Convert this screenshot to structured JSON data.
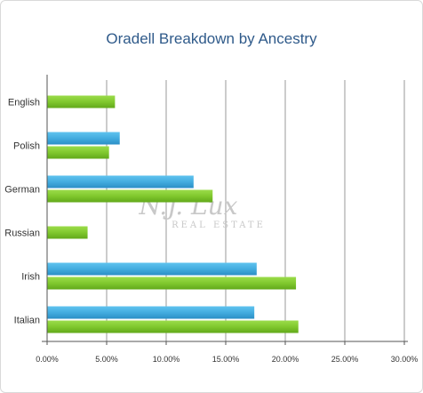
{
  "chart_data": {
    "type": "bar",
    "orientation": "horizontal",
    "title": "Oradell Breakdown by Ancestry",
    "categories": [
      "English",
      "Polish",
      "German",
      "Russian",
      "Irish",
      "Italian"
    ],
    "series": [
      {
        "color": "#3fa9de",
        "values": [
          null,
          6.1,
          12.3,
          null,
          17.6,
          17.4
        ]
      },
      {
        "color": "#7cc62a",
        "values": [
          5.7,
          5.2,
          13.9,
          3.4,
          20.9,
          21.1
        ]
      }
    ],
    "x_ticks": [
      "0.00%",
      "5.00%",
      "10.00%",
      "15.00%",
      "20.00%",
      "25.00%",
      "30.00%"
    ],
    "xlim": [
      0,
      30
    ],
    "grid": "vertical",
    "watermark": {
      "main": "N.J. Lux",
      "sub": "REAL ESTATE"
    }
  }
}
